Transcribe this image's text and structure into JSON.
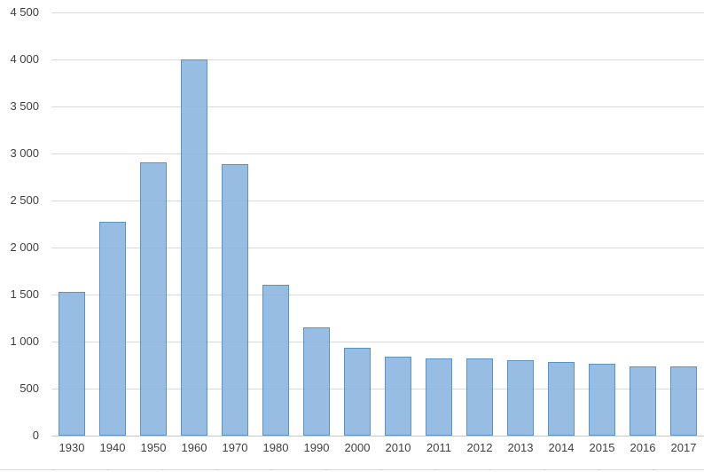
{
  "chart_data": {
    "type": "bar",
    "title": "",
    "xlabel": "",
    "ylabel": "",
    "categories": [
      "1930",
      "1940",
      "1950",
      "1960",
      "1970",
      "1980",
      "1990",
      "2000",
      "2010",
      "2011",
      "2012",
      "2013",
      "2014",
      "2015",
      "2016",
      "2017"
    ],
    "values": [
      1530,
      2270,
      2910,
      4000,
      2890,
      1600,
      1150,
      930,
      840,
      825,
      820,
      805,
      780,
      760,
      735,
      740
    ],
    "ylim": [
      0,
      4500
    ],
    "ytick_step": 500,
    "ytick_labels": [
      "0",
      "500",
      "1 000",
      "1 500",
      "2 000",
      "2 500",
      "3 000",
      "3 500",
      "4 000",
      "4 500"
    ],
    "grid": true,
    "legend": "none",
    "colors": {
      "bar_fill": "#8db6e0",
      "bar_fill_alpha": 0.9,
      "bar_border": "#5b93c6",
      "gridline": "#d9d9d9",
      "axis_line": "#c9c9c9",
      "tick_label": "#3f3f3f"
    }
  }
}
